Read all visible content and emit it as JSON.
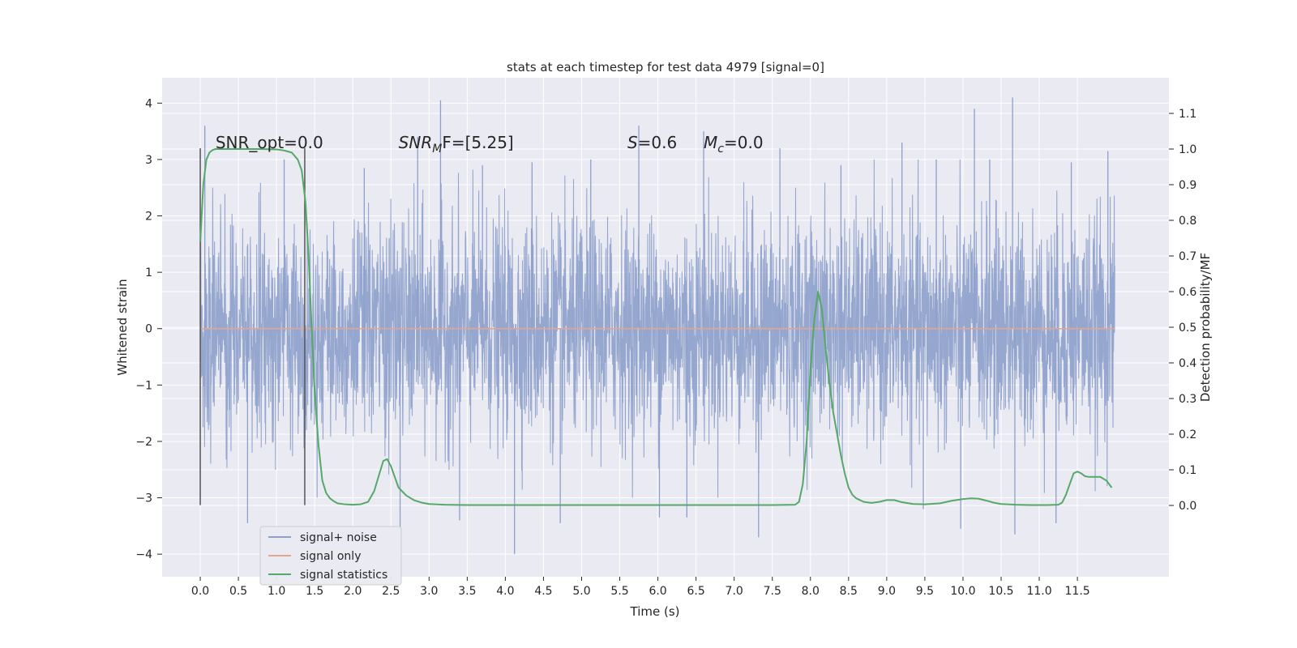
{
  "chart_data": {
    "type": "line",
    "title": "stats at each timestep for test data 4979 [signal=0]",
    "xlabel": "Time (s)",
    "ylabel": "Whitened strain",
    "y2label": "Detection probability/MF",
    "xlim": [
      -0.5,
      12.7
    ],
    "ylim": [
      -4.4,
      4.45
    ],
    "y2lim": [
      -0.2,
      1.2
    ],
    "x_ticks": [
      0.0,
      0.5,
      1.0,
      1.5,
      2.0,
      2.5,
      3.0,
      3.5,
      4.0,
      4.5,
      5.0,
      5.5,
      6.0,
      6.5,
      7.0,
      7.5,
      8.0,
      8.5,
      9.0,
      9.5,
      10.0,
      10.5,
      11.0,
      11.5
    ],
    "x_tick_labels": [
      "0.0",
      "0.5",
      "1.0",
      "1.5",
      "2.0",
      "2.5",
      "3.0",
      "3.5",
      "4.0",
      "4.5",
      "5.0",
      "5.5",
      "6.0",
      "6.5",
      "7.0",
      "7.5",
      "8.0",
      "8.5",
      "9.0",
      "9.5",
      "10.0",
      "10.5",
      "11.0",
      "11.5"
    ],
    "y_ticks": [
      -4,
      -3,
      -2,
      -1,
      0,
      1,
      2,
      3,
      4
    ],
    "y_tick_labels": [
      "−4",
      "−3",
      "−2",
      "−1",
      "0",
      "1",
      "2",
      "3",
      "4"
    ],
    "y2_ticks": [
      0.0,
      0.1,
      0.2,
      0.3,
      0.4,
      0.5,
      0.6,
      0.7,
      0.8,
      0.9,
      1.0,
      1.1
    ],
    "y2_tick_labels": [
      "0.0",
      "0.1",
      "0.2",
      "0.3",
      "0.4",
      "0.5",
      "0.6",
      "0.7",
      "0.8",
      "0.9",
      "1.0",
      "1.1"
    ],
    "grid": true,
    "legend_position": "lower-left",
    "series": [
      {
        "name": "signal+ noise",
        "color": "#8da0cb",
        "axis": "left",
        "x_range": [
          0.0,
          11.99
        ],
        "spikes": [
          {
            "x": 0.06,
            "y": 3.6
          },
          {
            "x": 0.62,
            "y": -3.45
          },
          {
            "x": 1.1,
            "y": 3.0
          },
          {
            "x": 2.15,
            "y": 2.85
          },
          {
            "x": 2.62,
            "y": -3.55
          },
          {
            "x": 2.85,
            "y": 3.4
          },
          {
            "x": 3.15,
            "y": 4.05
          },
          {
            "x": 3.4,
            "y": -3.4
          },
          {
            "x": 3.7,
            "y": 2.9
          },
          {
            "x": 4.12,
            "y": -4.0
          },
          {
            "x": 4.35,
            "y": 2.95
          },
          {
            "x": 4.72,
            "y": -3.45
          },
          {
            "x": 5.12,
            "y": 3.0
          },
          {
            "x": 5.75,
            "y": 3.6
          },
          {
            "x": 6.02,
            "y": -3.35
          },
          {
            "x": 6.38,
            "y": -3.35
          },
          {
            "x": 6.6,
            "y": 3.5
          },
          {
            "x": 7.32,
            "y": -3.7
          },
          {
            "x": 7.6,
            "y": 3.2
          },
          {
            "x": 8.4,
            "y": 2.9
          },
          {
            "x": 9.2,
            "y": 3.3
          },
          {
            "x": 9.48,
            "y": -3.2
          },
          {
            "x": 9.65,
            "y": 3.0
          },
          {
            "x": 9.97,
            "y": -3.55
          },
          {
            "x": 10.15,
            "y": 3.9
          },
          {
            "x": 10.35,
            "y": 3.0
          },
          {
            "x": 10.65,
            "y": 4.1
          },
          {
            "x": 10.68,
            "y": -3.65
          },
          {
            "x": 11.22,
            "y": -3.45
          },
          {
            "x": 11.42,
            "y": 2.95
          },
          {
            "x": 11.9,
            "y": 3.15
          }
        ]
      },
      {
        "name": "signal only",
        "color": "#e8a48a",
        "axis": "left",
        "x": [
          0.0,
          11.99
        ],
        "y": [
          0.0,
          0.0
        ]
      },
      {
        "name": "signal statistics",
        "color": "#55a868",
        "axis": "right",
        "x": [
          0.0,
          0.04,
          0.08,
          0.12,
          0.16,
          0.2,
          0.3,
          0.5,
          0.8,
          1.0,
          1.1,
          1.2,
          1.28,
          1.33,
          1.38,
          1.42,
          1.46,
          1.5,
          1.55,
          1.6,
          1.65,
          1.7,
          1.75,
          1.8,
          1.9,
          2.0,
          2.1,
          2.2,
          2.28,
          2.35,
          2.4,
          2.45,
          2.5,
          2.55,
          2.6,
          2.7,
          2.8,
          2.9,
          3.0,
          3.2,
          3.5,
          4.0,
          4.5,
          5.0,
          5.5,
          6.0,
          6.5,
          7.0,
          7.5,
          7.8,
          7.85,
          7.9,
          7.95,
          8.0,
          8.05,
          8.1,
          8.15,
          8.2,
          8.25,
          8.3,
          8.35,
          8.4,
          8.45,
          8.5,
          8.55,
          8.6,
          8.7,
          8.8,
          8.9,
          9.0,
          9.1,
          9.2,
          9.35,
          9.5,
          9.7,
          9.85,
          10.0,
          10.1,
          10.2,
          10.3,
          10.4,
          10.5,
          10.7,
          10.9,
          11.1,
          11.25,
          11.3,
          11.35,
          11.4,
          11.45,
          11.5,
          11.55,
          11.6,
          11.65,
          11.7,
          11.8,
          11.88,
          11.95
        ],
        "y": [
          0.74,
          0.9,
          0.97,
          0.99,
          0.997,
          1.0,
          1.0,
          1.0,
          1.0,
          0.999,
          0.996,
          0.99,
          0.97,
          0.94,
          0.85,
          0.7,
          0.5,
          0.32,
          0.17,
          0.07,
          0.035,
          0.02,
          0.012,
          0.006,
          0.003,
          0.002,
          0.003,
          0.01,
          0.04,
          0.09,
          0.125,
          0.13,
          0.11,
          0.08,
          0.05,
          0.028,
          0.015,
          0.008,
          0.004,
          0.002,
          0.001,
          0.001,
          0.001,
          0.001,
          0.001,
          0.001,
          0.001,
          0.001,
          0.001,
          0.002,
          0.01,
          0.06,
          0.18,
          0.38,
          0.52,
          0.6,
          0.55,
          0.44,
          0.34,
          0.26,
          0.2,
          0.14,
          0.09,
          0.05,
          0.03,
          0.02,
          0.01,
          0.007,
          0.01,
          0.015,
          0.015,
          0.009,
          0.004,
          0.003,
          0.006,
          0.013,
          0.018,
          0.02,
          0.019,
          0.014,
          0.008,
          0.004,
          0.002,
          0.001,
          0.001,
          0.002,
          0.008,
          0.03,
          0.06,
          0.09,
          0.095,
          0.09,
          0.082,
          0.08,
          0.08,
          0.08,
          0.07,
          0.05
        ]
      }
    ],
    "vlines": [
      {
        "x": 0.0,
        "ymin": -3.13,
        "ymax": 3.2,
        "color": "#555555"
      },
      {
        "x": 1.37,
        "ymin": -3.13,
        "ymax": 3.2,
        "color": "#555555"
      }
    ],
    "annotations": [
      {
        "text": "SNR_opt=0.0",
        "x": 0.2,
        "y": 3.2,
        "style": "plain"
      },
      {
        "text_main": "SNR",
        "text_sub": "M",
        "text_rest": "F=[5.25]",
        "x": 2.6,
        "y": 3.2,
        "style": "italic-sub"
      },
      {
        "text_main": "S",
        "text_sub": "",
        "text_rest": "=0.6",
        "x": 5.6,
        "y": 3.2,
        "style": "italic-sub"
      },
      {
        "text_main": "M",
        "text_sub": "c",
        "text_rest": "=0.0",
        "x": 6.6,
        "y": 3.2,
        "style": "italic-sub"
      }
    ],
    "legend": {
      "entries": [
        "signal+ noise",
        "signal only",
        "signal statistics"
      ],
      "colors": [
        "#8da0cb",
        "#e8a48a",
        "#55a868"
      ]
    }
  }
}
